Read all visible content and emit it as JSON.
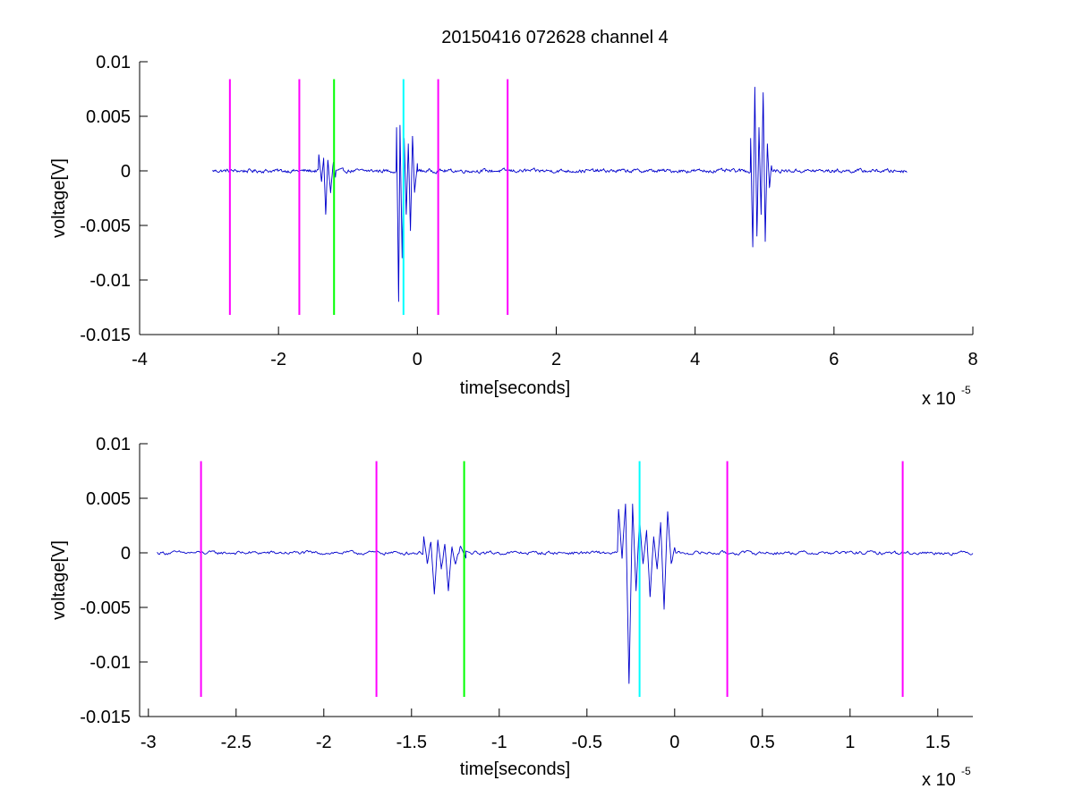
{
  "figure": {
    "title": "20150416 072628 channel 4",
    "signal_color": "#0000cc",
    "marker_colors": {
      "magenta": "#ff00ff",
      "green": "#00ff00",
      "cyan": "#00ffff"
    }
  },
  "chart_data": [
    {
      "type": "line",
      "title": "20150416 072628 channel 4",
      "xlabel": "time[seconds]",
      "ylabel": "voltage[V]",
      "x_multiplier": {
        "base": "x 10",
        "exponent": "-5"
      },
      "xlim": [
        -4,
        8
      ],
      "ylim": [
        -0.015,
        0.01
      ],
      "xticks": [
        -4,
        -2,
        0,
        2,
        4,
        6,
        8
      ],
      "xtick_labels": [
        "-4",
        "-2",
        "0",
        "2",
        "4",
        "6",
        "8"
      ],
      "yticks": [
        0.01,
        0.005,
        0,
        -0.005,
        -0.01,
        -0.015
      ],
      "ytick_labels": [
        "0.01",
        "0.005",
        "0",
        "-0.005",
        "-0.01",
        "-0.015"
      ],
      "grid": false,
      "series": [
        {
          "color": "#0000cc",
          "x_range": [
            -2.95,
            7.05
          ],
          "noise_amplitude": 0.0003,
          "bursts": [
            {
              "x": [
                -1.42,
                -1.38,
                -1.35,
                -1.32,
                -1.29,
                -1.25,
                -1.21,
                -1.18
              ],
              "y": [
                0.0015,
                -0.001,
                0.0012,
                -0.004,
                0.001,
                -0.002,
                0.0008,
                -0.0006
              ]
            },
            {
              "x": [
                -0.3,
                -0.27,
                -0.25,
                -0.22,
                -0.19,
                -0.16,
                -0.13,
                -0.1,
                -0.07,
                -0.04,
                0.0
              ],
              "y": [
                0.004,
                -0.012,
                0.0042,
                -0.008,
                0.003,
                -0.004,
                0.0025,
                -0.0055,
                0.0032,
                -0.002,
                0.0007
              ]
            },
            {
              "x": [
                4.8,
                4.83,
                4.86,
                4.89,
                4.92,
                4.95,
                4.98,
                5.01,
                5.04,
                5.07,
                5.1
              ],
              "y": [
                0.003,
                -0.007,
                0.0077,
                -0.006,
                0.004,
                -0.004,
                0.0072,
                -0.0065,
                0.0025,
                -0.0015,
                0.0005
              ]
            }
          ]
        }
      ],
      "markers": [
        {
          "x": -2.7,
          "color": "#ff00ff",
          "ymin": -0.0132,
          "ymax": 0.0084
        },
        {
          "x": -1.7,
          "color": "#ff00ff",
          "ymin": -0.0132,
          "ymax": 0.0084
        },
        {
          "x": -1.2,
          "color": "#00ff00",
          "ymin": -0.0132,
          "ymax": 0.0084
        },
        {
          "x": -0.2,
          "color": "#00ffff",
          "ymin": -0.0132,
          "ymax": 0.0084
        },
        {
          "x": 0.3,
          "color": "#ff00ff",
          "ymin": -0.0132,
          "ymax": 0.0084
        },
        {
          "x": 1.3,
          "color": "#ff00ff",
          "ymin": -0.0132,
          "ymax": 0.0084
        }
      ]
    },
    {
      "type": "line",
      "title": "",
      "xlabel": "time[seconds]",
      "ylabel": "voltage[V]",
      "x_multiplier": {
        "base": "x 10",
        "exponent": "-5"
      },
      "xlim": [
        -3.05,
        1.7
      ],
      "ylim": [
        -0.015,
        0.01
      ],
      "xticks": [
        -3,
        -2.5,
        -2,
        -1.5,
        -1,
        -0.5,
        0,
        0.5,
        1,
        1.5
      ],
      "xtick_labels": [
        "-3",
        "-2.5",
        "-2",
        "-1.5",
        "-1",
        "-0.5",
        "0",
        "0.5",
        "1",
        "1.5"
      ],
      "yticks": [
        0.01,
        0.005,
        0,
        -0.005,
        -0.01,
        -0.015
      ],
      "ytick_labels": [
        "0.01",
        "0.005",
        "0",
        "-0.005",
        "-0.01",
        "-0.015"
      ],
      "grid": false,
      "series": [
        {
          "color": "#0000cc",
          "x_range": [
            -2.95,
            1.7
          ],
          "noise_amplitude": 0.0003,
          "bursts": [
            {
              "x": [
                -1.43,
                -1.41,
                -1.39,
                -1.37,
                -1.35,
                -1.33,
                -1.31,
                -1.29,
                -1.27,
                -1.25,
                -1.22,
                -1.19
              ],
              "y": [
                0.0015,
                -0.001,
                0.001,
                -0.0038,
                0.0012,
                -0.0015,
                0.0008,
                -0.0035,
                0.0005,
                -0.001,
                0.0006,
                -0.0005
              ]
            },
            {
              "x": [
                -0.32,
                -0.3,
                -0.28,
                -0.26,
                -0.24,
                -0.22,
                -0.2,
                -0.18,
                -0.16,
                -0.14,
                -0.12,
                -0.1,
                -0.08,
                -0.06,
                -0.04,
                -0.02,
                0.0
              ],
              "y": [
                0.004,
                -0.0005,
                0.0045,
                -0.012,
                0.0045,
                -0.0035,
                0.003,
                -0.001,
                0.002,
                -0.004,
                0.0015,
                -0.0015,
                0.0028,
                -0.0052,
                0.0038,
                -0.001,
                0.0005
              ]
            }
          ]
        }
      ],
      "markers": [
        {
          "x": -2.7,
          "color": "#ff00ff",
          "ymin": -0.0132,
          "ymax": 0.0084
        },
        {
          "x": -1.7,
          "color": "#ff00ff",
          "ymin": -0.0132,
          "ymax": 0.0084
        },
        {
          "x": -1.2,
          "color": "#00ff00",
          "ymin": -0.0132,
          "ymax": 0.0084
        },
        {
          "x": -0.2,
          "color": "#00ffff",
          "ymin": -0.0132,
          "ymax": 0.0084
        },
        {
          "x": 0.3,
          "color": "#ff00ff",
          "ymin": -0.0132,
          "ymax": 0.0084
        },
        {
          "x": 1.3,
          "color": "#ff00ff",
          "ymin": -0.0132,
          "ymax": 0.0084
        }
      ]
    }
  ]
}
